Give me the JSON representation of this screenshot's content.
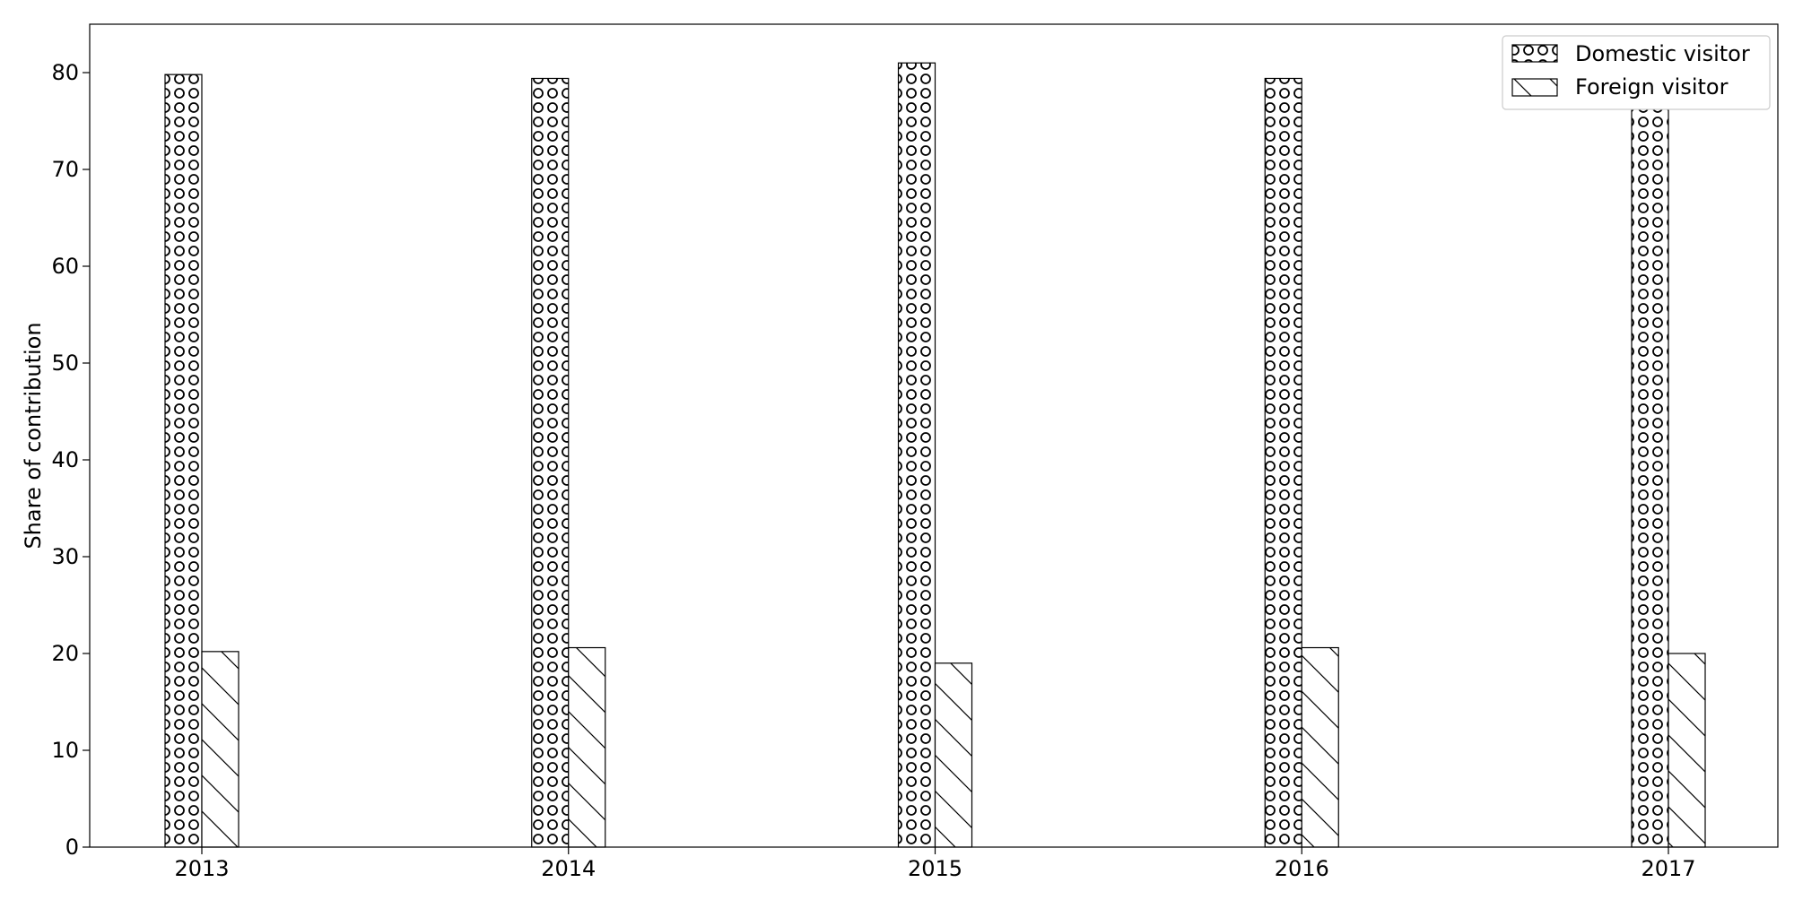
{
  "chart_data": {
    "type": "bar",
    "title": "",
    "xlabel": "",
    "ylabel": "Share of contribution",
    "categories": [
      "2013",
      "2014",
      "2015",
      "2016",
      "2017"
    ],
    "series": [
      {
        "name": "Domestic visitor",
        "values": [
          79.8,
          79.4,
          81.0,
          79.4,
          80.0
        ],
        "hatch": "circles"
      },
      {
        "name": "Foreign visitor",
        "values": [
          20.2,
          20.6,
          19.0,
          20.6,
          20.0
        ],
        "hatch": "diagonal"
      }
    ],
    "ylim": [
      0,
      85
    ],
    "yticks": [
      "0",
      "10",
      "20",
      "30",
      "40",
      "50",
      "60",
      "70",
      "80"
    ],
    "legend": "top-right",
    "grid": false,
    "colors": {
      "bar_fill": "#ffffff",
      "edge": "#000000",
      "background": "#ffffff"
    }
  }
}
